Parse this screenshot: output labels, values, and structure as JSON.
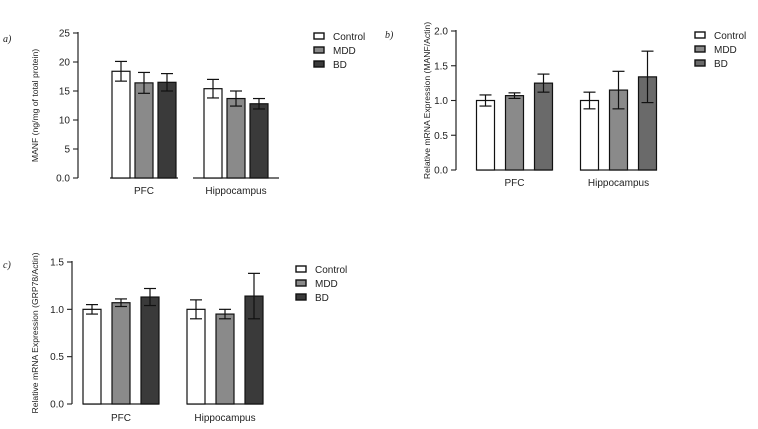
{
  "chart_data": [
    {
      "type": "bar",
      "panel_label": "a)",
      "categories": [
        "PFC",
        "Hippocampus"
      ],
      "series": [
        {
          "name": "Control",
          "color": "#ffffff",
          "values": [
            18.4,
            15.4
          ],
          "errors": [
            1.7,
            1.6
          ]
        },
        {
          "name": "MDD",
          "color": "#8a8a8a",
          "values": [
            16.4,
            13.7
          ],
          "errors": [
            1.8,
            1.3
          ]
        },
        {
          "name": "BD",
          "color": "#3a3a3a",
          "values": [
            16.5,
            12.8
          ],
          "errors": [
            1.5,
            0.9
          ]
        }
      ],
      "ylabel": "MANF (ng/mg of total protein)",
      "ylim": [
        0,
        25
      ],
      "yticks": [
        0,
        5,
        10,
        15,
        20,
        25
      ],
      "ytick_labels": [
        "0.0",
        "5",
        "10",
        "15",
        "20",
        "25"
      ],
      "legend": "top-right"
    },
    {
      "type": "bar",
      "panel_label": "b)",
      "categories": [
        "PFC",
        "Hippocampus"
      ],
      "series": [
        {
          "name": "Control",
          "color": "#ffffff",
          "values": [
            1.0,
            1.0
          ],
          "errors": [
            0.08,
            0.12
          ]
        },
        {
          "name": "MDD",
          "color": "#8a8a8a",
          "values": [
            1.07,
            1.15
          ],
          "errors": [
            0.04,
            0.27
          ]
        },
        {
          "name": "BD",
          "color": "#6a6a6a",
          "values": [
            1.25,
            1.34
          ],
          "errors": [
            0.13,
            0.37
          ]
        }
      ],
      "ylabel": "Relative mRNA Expression (MANF/Actin)",
      "ylim": [
        0,
        2.0
      ],
      "yticks": [
        0,
        0.5,
        1.0,
        1.5,
        2.0
      ],
      "ytick_labels": [
        "0.0",
        "0.5",
        "1.0",
        "1.5",
        "2.0"
      ],
      "legend": "top-right"
    },
    {
      "type": "bar",
      "panel_label": "c)",
      "categories": [
        "PFC",
        "Hippocampus"
      ],
      "series": [
        {
          "name": "Control",
          "color": "#ffffff",
          "values": [
            1.0,
            1.0
          ],
          "errors": [
            0.05,
            0.1
          ]
        },
        {
          "name": "MDD",
          "color": "#8a8a8a",
          "values": [
            1.07,
            0.95
          ],
          "errors": [
            0.04,
            0.05
          ]
        },
        {
          "name": "BD",
          "color": "#3a3a3a",
          "values": [
            1.13,
            1.14
          ],
          "errors": [
            0.09,
            0.24
          ]
        }
      ],
      "ylabel": "Relative mRNA Expression (GRP78/Actin)",
      "ylim": [
        0,
        1.5
      ],
      "yticks": [
        0,
        0.5,
        1.0,
        1.5
      ],
      "ytick_labels": [
        "0.0",
        "0.5",
        "1.0",
        "1.5"
      ],
      "legend": "top-right"
    }
  ]
}
